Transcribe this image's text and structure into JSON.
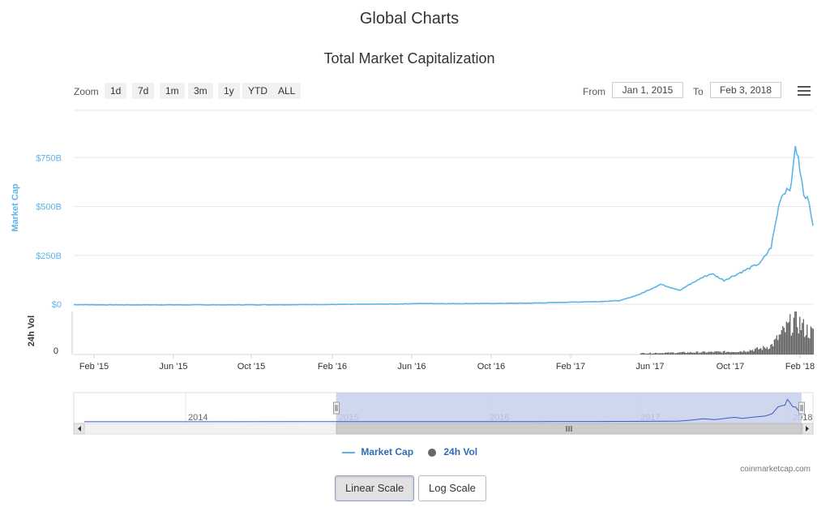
{
  "page_title": "Global Charts",
  "chart_title": "Total Market Capitalization",
  "toolbar": {
    "zoom_label": "Zoom",
    "zoom_buttons": [
      "1d",
      "7d",
      "1m",
      "3m",
      "1y",
      "YTD",
      "ALL"
    ],
    "from_label": "From",
    "from_value": "Jan 1, 2015",
    "to_label": "To",
    "to_value": "Feb 3, 2018"
  },
  "legend": {
    "market_cap": "Market Cap",
    "vol": "24h Vol"
  },
  "credit": "coinmarketcap.com",
  "scale_buttons": {
    "linear": "Linear Scale",
    "log": "Log Scale",
    "active": "linear"
  },
  "colors": {
    "market_cap": "#5cb4e6",
    "volume": "#555555",
    "navigator_fill": "#c6d0ea",
    "legend_text": "#2f6cb3"
  },
  "chart_data": {
    "type": "line",
    "x_ticks": [
      "Feb '15",
      "Jun '15",
      "Oct '15",
      "Feb '16",
      "Jun '16",
      "Oct '16",
      "Feb '17",
      "Jun '17",
      "Oct '17",
      "Feb '18"
    ],
    "x_range": [
      "2015-01-01",
      "2018-02-03"
    ],
    "market_cap_axis": {
      "label": "Market Cap",
      "ticks": [
        "$0",
        "$250B",
        "$500B",
        "$750B"
      ],
      "ylim": [
        0,
        1000
      ]
    },
    "volume_axis": {
      "label": "24h Vol",
      "ticks": [
        "0"
      ]
    },
    "series": [
      {
        "name": "Market Cap",
        "unit": "billion USD",
        "points": [
          [
            "2015-01-01",
            6
          ],
          [
            "2015-03-01",
            5
          ],
          [
            "2015-06-01",
            5
          ],
          [
            "2015-09-01",
            5
          ],
          [
            "2015-12-01",
            6
          ],
          [
            "2016-02-01",
            7
          ],
          [
            "2016-05-01",
            9
          ],
          [
            "2016-06-15",
            12
          ],
          [
            "2016-08-01",
            11
          ],
          [
            "2016-10-01",
            12
          ],
          [
            "2016-12-01",
            14
          ],
          [
            "2017-02-01",
            19
          ],
          [
            "2017-03-15",
            22
          ],
          [
            "2017-04-15",
            27
          ],
          [
            "2017-05-15",
            60
          ],
          [
            "2017-06-15",
            110
          ],
          [
            "2017-07-15",
            80
          ],
          [
            "2017-08-15",
            140
          ],
          [
            "2017-09-01",
            165
          ],
          [
            "2017-09-20",
            130
          ],
          [
            "2017-10-15",
            170
          ],
          [
            "2017-11-15",
            220
          ],
          [
            "2017-12-01",
            300
          ],
          [
            "2017-12-15",
            550
          ],
          [
            "2017-12-25",
            600
          ],
          [
            "2018-01-01",
            610
          ],
          [
            "2018-01-07",
            830
          ],
          [
            "2018-01-14",
            700
          ],
          [
            "2018-01-20",
            560
          ],
          [
            "2018-01-28",
            540
          ],
          [
            "2018-02-03",
            410
          ]
        ]
      },
      {
        "name": "24h Vol",
        "unit": "billion USD",
        "points": [
          [
            "2017-05-15",
            2
          ],
          [
            "2017-07-15",
            3
          ],
          [
            "2017-09-15",
            4
          ],
          [
            "2017-10-15",
            5
          ],
          [
            "2017-11-15",
            9
          ],
          [
            "2017-12-01",
            14
          ],
          [
            "2017-12-15",
            30
          ],
          [
            "2018-01-07",
            55
          ],
          [
            "2018-01-20",
            40
          ],
          [
            "2018-02-03",
            32
          ]
        ]
      }
    ],
    "navigator": {
      "ticks": [
        "2014",
        "2015",
        "2016",
        "2017",
        "2018"
      ],
      "selection": [
        "2015-01-01",
        "2018-02-03"
      ]
    }
  }
}
